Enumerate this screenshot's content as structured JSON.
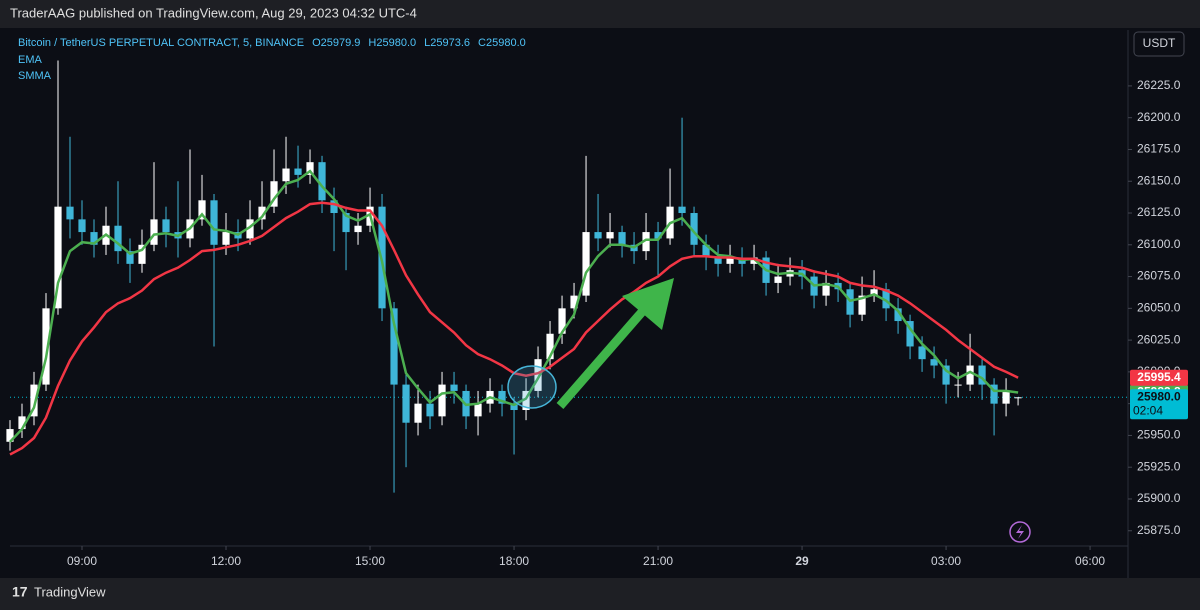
{
  "chart_data": {
    "type": "candlestick",
    "publisher": "TraderAAG published on TradingView.com, Aug 29, 2023 04:32 UTC-4",
    "symbol": "Bitcoin / TetherUS PERPETUAL CONTRACT, 5, BINANCE",
    "ohlc_labels": [
      "O25979.9",
      "H25980.0",
      "L25973.6",
      "C25980.0"
    ],
    "currency": "USDT",
    "brand": "TradingView",
    "countdown": "02:04",
    "up_color": "#ffffff",
    "down_color": "#3fb6d8",
    "x": [
      7.5,
      7.75,
      8,
      8.25,
      8.5,
      8.75,
      9,
      9.25,
      9.5,
      9.75,
      10,
      10.25,
      10.5,
      10.75,
      11,
      11.25,
      11.5,
      11.75,
      12,
      12.25,
      12.5,
      12.75,
      13,
      13.25,
      13.5,
      13.75,
      14,
      14.25,
      14.5,
      14.75,
      15,
      15.25,
      15.5,
      15.75,
      16,
      16.25,
      16.5,
      16.75,
      17,
      17.25,
      17.5,
      17.75,
      18,
      18.25,
      18.5,
      18.75,
      19,
      19.25,
      19.5,
      19.75,
      20,
      20.25,
      20.5,
      20.75,
      21,
      21.25,
      21.5,
      21.75,
      22,
      22.25,
      22.5,
      22.75,
      23,
      23.25,
      23.5,
      23.75,
      24,
      24.25,
      24.5,
      24.75,
      25,
      25.25,
      25.5,
      25.75,
      26,
      26.25,
      26.5,
      26.75,
      27,
      27.25,
      27.5,
      27.75,
      28,
      28.25,
      28.5
    ],
    "open": [
      25945,
      25955,
      25965,
      25990,
      26050,
      26130,
      26120,
      26110,
      26100,
      26115,
      26095,
      26085,
      26100,
      26120,
      26110,
      26105,
      26120,
      26135,
      26100,
      26110,
      26105,
      26120,
      26130,
      26150,
      26160,
      26155,
      26165,
      26135,
      26125,
      26110,
      26115,
      26130,
      26050,
      25990,
      25960,
      25975,
      25965,
      25990,
      25985,
      25965,
      25975,
      25985,
      25975,
      25970,
      25985,
      26010,
      26030,
      26050,
      26060,
      26110,
      26105,
      26110,
      26100,
      26095,
      26110,
      26105,
      26130,
      26125,
      26100,
      26090,
      26085,
      26090,
      26085,
      26090,
      26070,
      26075,
      26080,
      26075,
      26060,
      26070,
      26065,
      26045,
      26060,
      26065,
      26050,
      26040,
      26020,
      26010,
      26005,
      25990,
      25990,
      26005,
      25990,
      25975,
      25979.9
    ],
    "high": [
      25962,
      25975,
      26000,
      26062,
      26245,
      26185,
      26135,
      26120,
      26130,
      26150,
      26105,
      26112,
      26165,
      26130,
      26150,
      26175,
      26155,
      26140,
      26125,
      26120,
      26135,
      26150,
      26175,
      26185,
      26178,
      26175,
      26170,
      26145,
      26130,
      26125,
      26145,
      26140,
      26055,
      26000,
      25990,
      25985,
      26000,
      26000,
      25990,
      25985,
      25995,
      25990,
      25980,
      25995,
      26020,
      26040,
      26060,
      26070,
      26170,
      26140,
      26125,
      26115,
      26110,
      26125,
      26118,
      26160,
      26200,
      26130,
      26108,
      26100,
      26100,
      26098,
      26100,
      26095,
      26085,
      26090,
      26088,
      26080,
      26080,
      26078,
      26070,
      26075,
      26080,
      26070,
      26058,
      26045,
      26028,
      26020,
      26010,
      26000,
      26030,
      26010,
      25995,
      25995,
      25980
    ],
    "low": [
      25938,
      25948,
      25958,
      25985,
      26045,
      26105,
      26100,
      26090,
      26092,
      26085,
      26070,
      26078,
      26095,
      26098,
      26090,
      26098,
      26115,
      26020,
      26092,
      26095,
      26100,
      26112,
      26125,
      26140,
      26145,
      26148,
      26125,
      26095,
      26080,
      26100,
      26110,
      26040,
      25905,
      25925,
      25950,
      25955,
      25958,
      25975,
      25955,
      25950,
      25968,
      25965,
      25935,
      25962,
      25980,
      26002,
      26022,
      26042,
      26055,
      26095,
      26098,
      26090,
      26085,
      26088,
      26075,
      26100,
      26115,
      26092,
      26080,
      26075,
      26078,
      26075,
      26080,
      26060,
      26062,
      26068,
      26065,
      26050,
      26052,
      26055,
      26035,
      26040,
      26055,
      26040,
      26030,
      26010,
      26000,
      25995,
      25975,
      25980,
      25985,
      25978,
      25950,
      25965,
      25973.6
    ],
    "close": [
      25955,
      25965,
      25990,
      26050,
      26130,
      26120,
      26110,
      26100,
      26115,
      26095,
      26085,
      26100,
      26120,
      26110,
      26105,
      26120,
      26135,
      26100,
      26110,
      26105,
      26120,
      26130,
      26150,
      26160,
      26155,
      26165,
      26135,
      26125,
      26110,
      26115,
      26130,
      26050,
      25990,
      25960,
      25975,
      25965,
      25990,
      25985,
      25965,
      25975,
      25985,
      25975,
      25970,
      25985,
      26010,
      26030,
      26050,
      26060,
      26110,
      26105,
      26110,
      26100,
      26095,
      26110,
      26105,
      26130,
      26125,
      26100,
      26090,
      26085,
      26090,
      26085,
      26090,
      26070,
      26075,
      26080,
      26075,
      26060,
      26070,
      26065,
      26045,
      26060,
      26065,
      26050,
      26040,
      26020,
      26010,
      26005,
      25990,
      25990,
      26005,
      25990,
      25975,
      25985,
      25980
    ],
    "series": [
      {
        "name": "EMA",
        "color": "#4caf50",
        "values": [
          25945,
          25955,
          25972,
          26011,
          26070,
          26095,
          26102,
          26101,
          26108,
          26101,
          26093,
          26096,
          26108,
          26109,
          26107,
          26113,
          26124,
          26112,
          26111,
          26108,
          26114,
          26122,
          26136,
          26148,
          26151,
          26158,
          26146,
          26136,
          26123,
          26119,
          26124,
          26087,
          26038,
          25999,
          25987,
          25976,
          25983,
          25984,
          25974,
          25975,
          25980,
          25977,
          25974,
          25979,
          25995,
          26012,
          26031,
          26045,
          26078,
          26091,
          26100,
          26100,
          26098,
          26104,
          26104,
          26117,
          26121,
          26110,
          26100,
          26092,
          26091,
          26088,
          26089,
          26080,
          26077,
          26078,
          26077,
          26068,
          26069,
          26067,
          26056,
          26058,
          26061,
          26056,
          26048,
          26034,
          26022,
          26013,
          26001,
          25995,
          26000,
          25995,
          25985,
          25985,
          25983.8
        ]
      },
      {
        "name": "SMMA",
        "color": "#f23645",
        "values": [
          25935,
          25940,
          25948,
          25964,
          25989,
          26009,
          26024,
          26035,
          26047,
          26054,
          26058,
          26064,
          26073,
          26078,
          26082,
          26088,
          26095,
          26096,
          26098,
          26100,
          26103,
          26107,
          26114,
          26121,
          26126,
          26132,
          26133,
          26132,
          26129,
          26127,
          26127,
          26115,
          26096,
          26076,
          26061,
          26047,
          26039,
          26031,
          26021,
          26014,
          26010,
          26005,
          25999,
          25997,
          25999,
          26004,
          26011,
          26018,
          26031,
          26040,
          26049,
          26057,
          26063,
          26070,
          26075,
          26083,
          26089,
          26091,
          26091,
          26090,
          26090,
          26089,
          26089,
          26086,
          26084,
          26083,
          26082,
          26079,
          26077,
          26075,
          26070,
          26068,
          26067,
          26064,
          26060,
          26054,
          26047,
          26040,
          26033,
          26025,
          26018,
          26011,
          26004,
          26000,
          25995.4
        ]
      }
    ],
    "last_price": {
      "value": 25980,
      "label": "25980.0",
      "color": "#00bcd4"
    },
    "xlim": [
      7.5,
      30.79
    ],
    "xticks": [
      {
        "value": 9,
        "label": "09:00"
      },
      {
        "value": 12,
        "label": "12:00"
      },
      {
        "value": 15,
        "label": "15:00"
      },
      {
        "value": 18,
        "label": "18:00"
      },
      {
        "value": 21,
        "label": "21:00"
      },
      {
        "value": 24,
        "label": "29"
      },
      {
        "value": 27,
        "label": "03:00"
      },
      {
        "value": 30,
        "label": "06:00"
      }
    ],
    "ylim": [
      25863,
      26269
    ],
    "yticks": [
      {
        "value": 25875,
        "label": "25875.0"
      },
      {
        "value": 25900,
        "label": "25900.0"
      },
      {
        "value": 25925,
        "label": "25925.0"
      },
      {
        "value": 25950,
        "label": "25950.0"
      },
      {
        "value": 25975,
        "label": "25975.0"
      },
      {
        "value": 26000,
        "label": "26000.0"
      },
      {
        "value": 26025,
        "label": "26025.0"
      },
      {
        "value": 26050,
        "label": "26050.0"
      },
      {
        "value": 26075,
        "label": "26075.0"
      },
      {
        "value": 26100,
        "label": "26100.0"
      },
      {
        "value": 26125,
        "label": "26125.0"
      },
      {
        "value": 26150,
        "label": "26150.0"
      },
      {
        "value": 26175,
        "label": "26175.0"
      },
      {
        "value": 26200,
        "label": "26200.0"
      },
      {
        "value": 26225,
        "label": "26225.0"
      }
    ]
  }
}
